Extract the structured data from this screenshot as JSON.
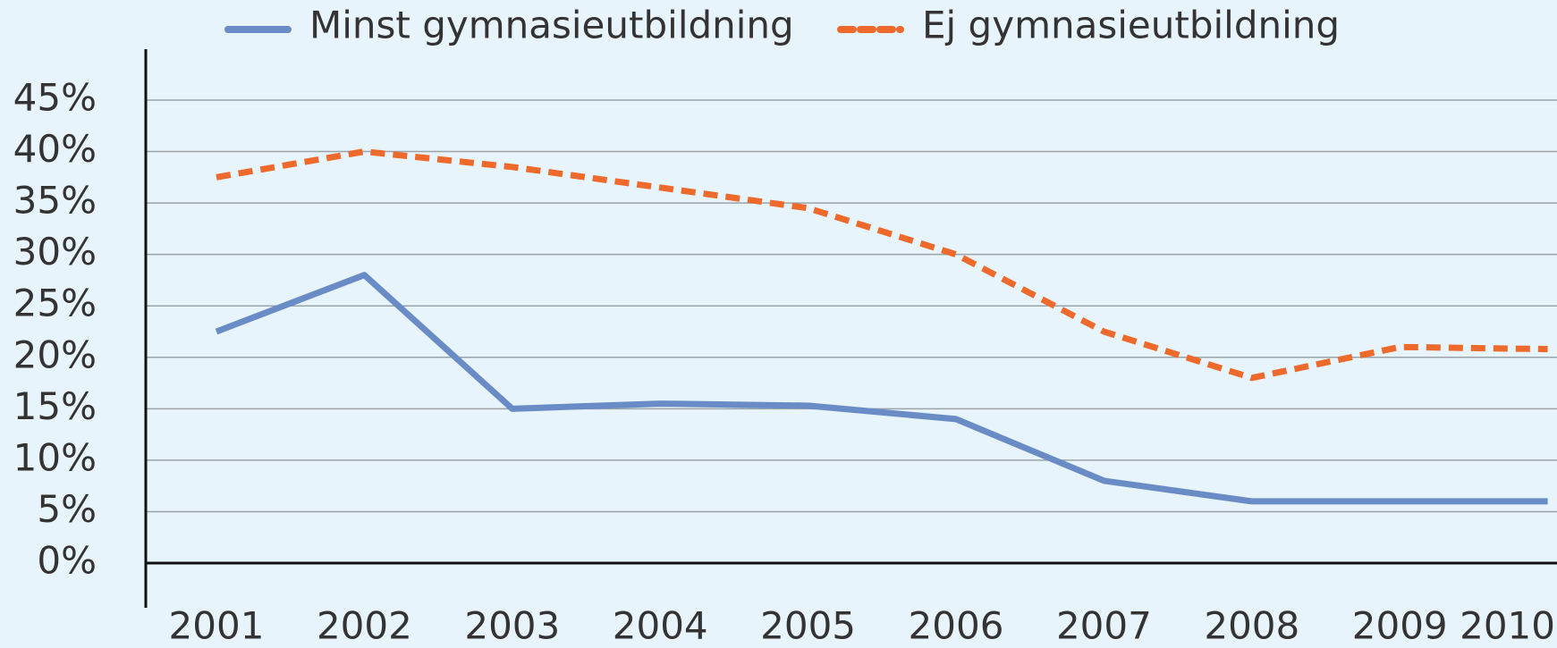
{
  "chart_data": {
    "type": "line",
    "categories": [
      "2001",
      "2002",
      "2003",
      "2004",
      "2005",
      "2006",
      "2007",
      "2008",
      "2009",
      "2010"
    ],
    "series": [
      {
        "name": "Minst gymnasieutbildning",
        "color": "#6a8cc6",
        "dash": false,
        "values": [
          22.5,
          28,
          15,
          15.5,
          15.3,
          14,
          8,
          6,
          6,
          6
        ]
      },
      {
        "name": "Ej gymnasieutbildning",
        "color": "#ee6a2c",
        "dash": true,
        "values": [
          37.5,
          40,
          38.5,
          36.5,
          34.5,
          30,
          22.5,
          18,
          21,
          20.8
        ]
      }
    ],
    "ylim": [
      0,
      45
    ],
    "yticks": [
      {
        "value": 0,
        "label": "0%"
      },
      {
        "value": 5,
        "label": "5%"
      },
      {
        "value": 10,
        "label": "10%"
      },
      {
        "value": 15,
        "label": "15%"
      },
      {
        "value": 20,
        "label": "20%"
      },
      {
        "value": 25,
        "label": "25%"
      },
      {
        "value": 30,
        "label": "30%"
      },
      {
        "value": 35,
        "label": "35%"
      },
      {
        "value": 40,
        "label": "40%"
      },
      {
        "value": 45,
        "label": "45%"
      }
    ],
    "grid": true,
    "legend": "top"
  }
}
